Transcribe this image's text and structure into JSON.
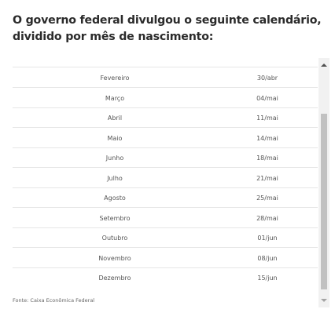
{
  "heading": "O governo federal divulgou o seguinte calendário, dividido por mês de nascimento:",
  "table": {
    "partial_top": "˙",
    "rows": [
      {
        "month": "Fevereiro",
        "date": "30/abr"
      },
      {
        "month": "Março",
        "date": "04/mai"
      },
      {
        "month": "Abril",
        "date": "11/mai"
      },
      {
        "month": "Maio",
        "date": "14/mai"
      },
      {
        "month": "Junho",
        "date": "18/mai"
      },
      {
        "month": "Julho",
        "date": "21/mai"
      },
      {
        "month": "Agosto",
        "date": "25/mai"
      },
      {
        "month": "Setembro",
        "date": "28/mai"
      },
      {
        "month": "Outubro",
        "date": "01/jun"
      },
      {
        "month": "Novembro",
        "date": "08/jun"
      },
      {
        "month": "Dezembro",
        "date": "15/jun"
      }
    ]
  },
  "scrollbar": {
    "up_icon": "triangle-up",
    "down_icon": "triangle-down"
  },
  "source": "Fonte: Caixa Econômica Federal"
}
